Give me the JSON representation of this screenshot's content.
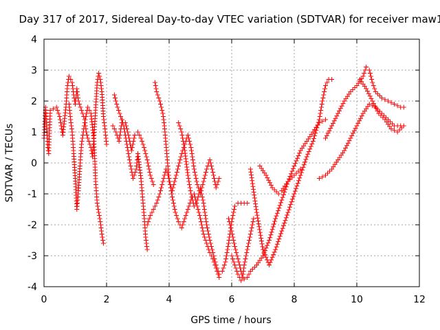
{
  "chart_data": {
    "type": "scatter",
    "title": "Day 317 of 2017, Sidereal Day-to-day VTEC variation (SDTVAR) for receiver maw1",
    "xlabel": "GPS time / hours",
    "ylabel": "SDTVAR / TECUs",
    "xlim": [
      0,
      12
    ],
    "ylim": [
      -4,
      4
    ],
    "xticks": [
      0,
      2,
      4,
      6,
      8,
      10,
      12
    ],
    "xtick_labels": [
      "0",
      "2",
      "4",
      "6",
      "8",
      "10",
      "12"
    ],
    "yticks": [
      -4,
      -3,
      -2,
      -1,
      0,
      1,
      2,
      3,
      4
    ],
    "ytick_labels": [
      "-4",
      "-3",
      "-2",
      "-1",
      "0",
      "1",
      "2",
      "3",
      "4"
    ],
    "grid": true,
    "marker": "+",
    "series_color": "#ff0000",
    "series": [
      {
        "name": "t1",
        "points": [
          [
            0.0,
            0.8
          ],
          [
            0.05,
            1.8
          ],
          [
            0.08,
            1.2
          ],
          [
            0.12,
            0.5
          ],
          [
            0.15,
            0.3
          ],
          [
            0.2,
            1.7
          ],
          [
            0.4,
            1.8
          ],
          [
            0.5,
            1.5
          ],
          [
            0.6,
            0.9
          ],
          [
            0.7,
            1.8
          ],
          [
            0.75,
            2.5
          ],
          [
            0.8,
            2.8
          ],
          [
            0.9,
            2.6
          ],
          [
            0.95,
            2.2
          ],
          [
            1.0,
            1.9
          ],
          [
            1.05,
            2.4
          ],
          [
            1.1,
            2.0
          ],
          [
            1.2,
            1.7
          ],
          [
            1.3,
            1.4
          ],
          [
            1.35,
            1.0
          ],
          [
            1.4,
            0.8
          ],
          [
            1.5,
            0.5
          ],
          [
            1.55,
            0.2
          ],
          [
            1.6,
            0.9
          ],
          [
            1.7,
            2.6
          ],
          [
            1.75,
            2.9
          ],
          [
            1.8,
            2.7
          ],
          [
            1.85,
            2.3
          ],
          [
            1.9,
            1.5
          ],
          [
            1.95,
            1.1
          ],
          [
            2.0,
            0.6
          ]
        ]
      },
      {
        "name": "t2",
        "points": [
          [
            0.8,
            1.9
          ],
          [
            0.85,
            1.4
          ],
          [
            0.9,
            1.0
          ],
          [
            0.95,
            0.3
          ],
          [
            1.0,
            -0.5
          ],
          [
            1.05,
            -1.5
          ],
          [
            1.1,
            -0.9
          ],
          [
            1.15,
            -0.1
          ],
          [
            1.2,
            0.6
          ],
          [
            1.3,
            1.3
          ],
          [
            1.4,
            1.8
          ],
          [
            1.5,
            1.6
          ],
          [
            1.6,
            0.7
          ],
          [
            1.65,
            -0.6
          ],
          [
            1.7,
            -1.3
          ],
          [
            1.8,
            -1.9
          ],
          [
            1.85,
            -2.3
          ],
          [
            1.9,
            -2.6
          ]
        ]
      },
      {
        "name": "t3",
        "points": [
          [
            2.2,
            1.2
          ],
          [
            2.3,
            1.0
          ],
          [
            2.4,
            0.7
          ],
          [
            2.5,
            1.4
          ],
          [
            2.6,
            1.3
          ],
          [
            2.7,
            0.9
          ],
          [
            2.8,
            0.4
          ],
          [
            2.9,
            0.9
          ],
          [
            3.0,
            1.0
          ],
          [
            3.1,
            0.8
          ],
          [
            3.2,
            0.5
          ],
          [
            3.3,
            0.1
          ],
          [
            3.4,
            -0.4
          ],
          [
            3.5,
            -0.7
          ]
        ]
      },
      {
        "name": "t4",
        "points": [
          [
            2.25,
            2.2
          ],
          [
            2.35,
            1.8
          ],
          [
            2.45,
            1.5
          ],
          [
            2.55,
            1.2
          ],
          [
            2.65,
            0.6
          ],
          [
            2.75,
            0.0
          ],
          [
            2.85,
            -0.5
          ],
          [
            2.95,
            -0.2
          ],
          [
            3.0,
            0.3
          ],
          [
            3.1,
            -0.5
          ],
          [
            3.15,
            -1.1
          ],
          [
            3.2,
            -1.7
          ],
          [
            3.25,
            -2.4
          ],
          [
            3.3,
            -2.8
          ]
        ]
      },
      {
        "name": "t5",
        "points": [
          [
            3.55,
            2.6
          ],
          [
            3.6,
            2.3
          ],
          [
            3.7,
            2.0
          ],
          [
            3.8,
            1.6
          ],
          [
            3.85,
            1.2
          ],
          [
            3.9,
            0.6
          ],
          [
            3.95,
            0.0
          ],
          [
            4.0,
            -0.6
          ],
          [
            4.1,
            -0.9
          ],
          [
            4.2,
            -0.5
          ],
          [
            4.3,
            -0.1
          ],
          [
            4.4,
            0.3
          ],
          [
            4.5,
            0.6
          ],
          [
            4.6,
            0.9
          ],
          [
            4.7,
            0.5
          ],
          [
            4.8,
            -0.2
          ],
          [
            4.9,
            -0.7
          ],
          [
            5.0,
            -1.0
          ],
          [
            5.1,
            -0.6
          ],
          [
            5.2,
            -0.2
          ],
          [
            5.3,
            0.1
          ],
          [
            5.4,
            -0.3
          ],
          [
            5.5,
            -0.8
          ],
          [
            5.6,
            -0.5
          ]
        ]
      },
      {
        "name": "t6",
        "points": [
          [
            3.3,
            -2.0
          ],
          [
            3.4,
            -1.7
          ],
          [
            3.5,
            -1.5
          ],
          [
            3.6,
            -1.3
          ],
          [
            3.7,
            -1.0
          ],
          [
            3.8,
            -0.6
          ],
          [
            3.9,
            -0.2
          ],
          [
            4.0,
            -0.5
          ],
          [
            4.1,
            -1.1
          ],
          [
            4.2,
            -1.6
          ],
          [
            4.3,
            -1.9
          ],
          [
            4.4,
            -2.1
          ],
          [
            4.5,
            -1.8
          ],
          [
            4.6,
            -1.5
          ],
          [
            4.7,
            -1.2
          ],
          [
            4.8,
            -1.0
          ],
          [
            4.9,
            -1.4
          ],
          [
            5.0,
            -1.8
          ],
          [
            5.1,
            -2.3
          ],
          [
            5.2,
            -2.6
          ],
          [
            5.3,
            -2.9
          ],
          [
            5.4,
            -3.1
          ],
          [
            5.5,
            -3.4
          ],
          [
            5.6,
            -3.7
          ]
        ]
      },
      {
        "name": "t7",
        "points": [
          [
            4.3,
            1.3
          ],
          [
            4.4,
            1.0
          ],
          [
            4.5,
            0.4
          ],
          [
            4.6,
            -0.4
          ],
          [
            4.7,
            -1.0
          ],
          [
            4.8,
            -1.4
          ],
          [
            4.9,
            -1.2
          ],
          [
            5.0,
            -0.8
          ],
          [
            5.1,
            -1.3
          ],
          [
            5.2,
            -2.0
          ],
          [
            5.3,
            -2.5
          ],
          [
            5.4,
            -2.9
          ],
          [
            5.5,
            -3.3
          ],
          [
            5.6,
            -3.6
          ]
        ]
      },
      {
        "name": "t8",
        "points": [
          [
            5.7,
            -3.5
          ],
          [
            5.8,
            -3.2
          ],
          [
            5.9,
            -2.6
          ],
          [
            6.0,
            -1.9
          ],
          [
            6.1,
            -1.4
          ],
          [
            6.2,
            -1.3
          ],
          [
            6.3,
            -1.3
          ],
          [
            6.4,
            -1.3
          ],
          [
            6.5,
            -1.3
          ]
        ]
      },
      {
        "name": "t9",
        "points": [
          [
            5.9,
            -1.8
          ],
          [
            6.0,
            -2.2
          ],
          [
            6.1,
            -2.7
          ],
          [
            6.2,
            -3.1
          ],
          [
            6.3,
            -3.5
          ],
          [
            6.35,
            -3.7
          ],
          [
            6.4,
            -3.3
          ],
          [
            6.5,
            -2.8
          ],
          [
            6.6,
            -2.3
          ],
          [
            6.7,
            -1.8
          ]
        ]
      },
      {
        "name": "t10",
        "points": [
          [
            6.0,
            -3.0
          ],
          [
            6.1,
            -3.3
          ],
          [
            6.2,
            -3.6
          ],
          [
            6.3,
            -3.8
          ],
          [
            6.5,
            -3.7
          ],
          [
            6.6,
            -3.5
          ],
          [
            6.8,
            -3.3
          ],
          [
            7.0,
            -3.0
          ],
          [
            7.2,
            -2.5
          ],
          [
            7.4,
            -1.8
          ],
          [
            7.6,
            -1.2
          ],
          [
            7.8,
            -0.6
          ],
          [
            8.0,
            -0.1
          ],
          [
            8.2,
            0.4
          ],
          [
            8.4,
            0.7
          ],
          [
            8.6,
            1.0
          ],
          [
            8.8,
            1.3
          ],
          [
            9.0,
            1.4
          ]
        ]
      },
      {
        "name": "t11",
        "points": [
          [
            6.6,
            -0.2
          ],
          [
            6.8,
            -1.6
          ],
          [
            7.0,
            -2.8
          ],
          [
            7.2,
            -3.3
          ],
          [
            7.4,
            -2.8
          ],
          [
            7.6,
            -2.2
          ],
          [
            7.8,
            -1.6
          ],
          [
            8.0,
            -1.0
          ],
          [
            8.2,
            -0.4
          ],
          [
            8.4,
            0.2
          ],
          [
            8.6,
            0.7
          ],
          [
            8.8,
            1.4
          ],
          [
            8.9,
            2.0
          ],
          [
            9.0,
            2.5
          ],
          [
            9.1,
            2.7
          ],
          [
            9.2,
            2.7
          ]
        ]
      },
      {
        "name": "t12",
        "points": [
          [
            6.9,
            -0.1
          ],
          [
            7.1,
            -0.4
          ],
          [
            7.3,
            -0.8
          ],
          [
            7.5,
            -1.0
          ],
          [
            7.6,
            -0.9
          ],
          [
            7.8,
            -0.6
          ],
          [
            8.0,
            -0.4
          ],
          [
            8.2,
            -0.2
          ]
        ]
      },
      {
        "name": "t13",
        "points": [
          [
            8.8,
            -0.5
          ],
          [
            9.0,
            -0.4
          ],
          [
            9.2,
            -0.2
          ],
          [
            9.4,
            0.1
          ],
          [
            9.6,
            0.4
          ],
          [
            9.8,
            0.8
          ],
          [
            10.0,
            1.2
          ],
          [
            10.2,
            1.6
          ],
          [
            10.4,
            1.9
          ],
          [
            10.6,
            1.8
          ],
          [
            10.8,
            1.6
          ],
          [
            11.0,
            1.4
          ],
          [
            11.2,
            1.2
          ],
          [
            11.4,
            1.2
          ]
        ]
      },
      {
        "name": "t14",
        "points": [
          [
            9.0,
            0.8
          ],
          [
            9.2,
            1.2
          ],
          [
            9.4,
            1.6
          ],
          [
            9.6,
            2.0
          ],
          [
            9.8,
            2.3
          ],
          [
            10.0,
            2.5
          ],
          [
            10.2,
            2.8
          ],
          [
            10.3,
            3.1
          ],
          [
            10.4,
            3.0
          ],
          [
            10.5,
            2.6
          ],
          [
            10.6,
            2.3
          ],
          [
            10.8,
            2.1
          ],
          [
            11.0,
            2.0
          ],
          [
            11.2,
            1.9
          ],
          [
            11.4,
            1.8
          ],
          [
            11.5,
            1.8
          ]
        ]
      },
      {
        "name": "t15",
        "points": [
          [
            10.1,
            2.7
          ],
          [
            10.3,
            2.4
          ],
          [
            10.5,
            2.0
          ],
          [
            10.7,
            1.6
          ],
          [
            10.9,
            1.4
          ],
          [
            11.1,
            1.1
          ],
          [
            11.3,
            1.0
          ],
          [
            11.5,
            1.2
          ]
        ]
      }
    ]
  }
}
